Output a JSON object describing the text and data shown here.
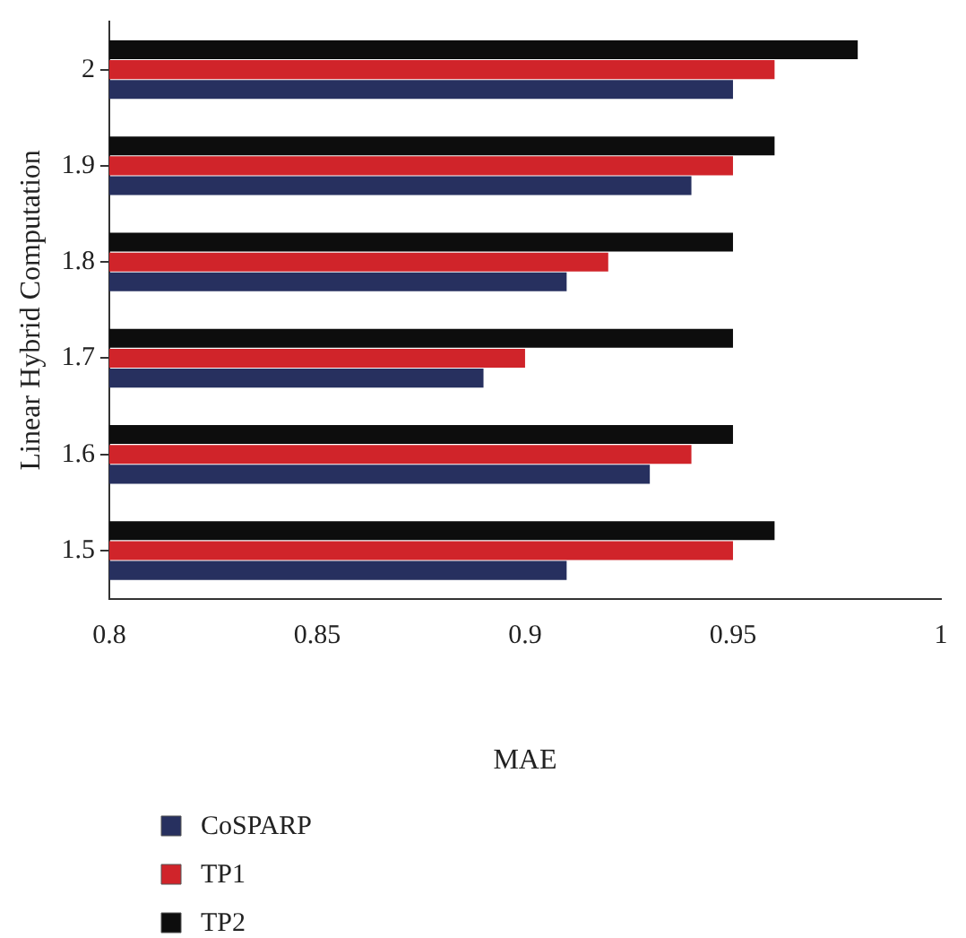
{
  "chart_data": {
    "type": "bar",
    "orientation": "horizontal",
    "xlabel": "MAE",
    "ylabel": "Linear Hybrid Computation",
    "categories": [
      "2",
      "1.9",
      "1.8",
      "1.7",
      "1.6",
      "1.5"
    ],
    "series": [
      {
        "name": "CoSPARP",
        "color": "#27305f",
        "values": [
          0.95,
          0.94,
          0.91,
          0.89,
          0.93,
          0.91
        ]
      },
      {
        "name": "TP1",
        "color": "#d0242a",
        "values": [
          0.96,
          0.95,
          0.92,
          0.9,
          0.94,
          0.95
        ]
      },
      {
        "name": "TP2",
        "color": "#0d0d0d",
        "values": [
          0.98,
          0.96,
          0.95,
          0.95,
          0.95,
          0.96
        ]
      }
    ],
    "xlim": [
      0.8,
      1
    ],
    "xticks": [
      0.8,
      0.85,
      0.9,
      0.95,
      1
    ],
    "grid": false,
    "legend": "bottom left"
  }
}
